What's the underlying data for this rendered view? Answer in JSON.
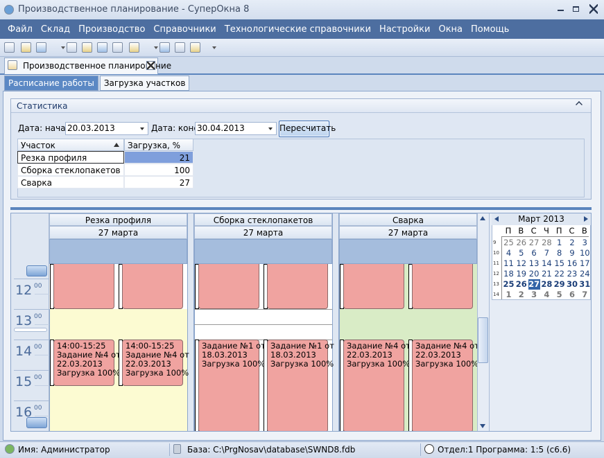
{
  "window": {
    "title": "Производственное планирование - СуперОкна 8"
  },
  "menu": [
    "Файл",
    "Склад",
    "Производство",
    "Справочники",
    "Технологические справочники",
    "Настройки",
    "Окна",
    "Помощь"
  ],
  "document_tab": "Производственное планирование",
  "tabs": [
    "Расписание работы",
    "Загрузка участков"
  ],
  "statistics": {
    "title": "Статистика",
    "start_label": "Дата: начало",
    "start": "20.03.2013",
    "end_label": "Дата: конец",
    "end": "30.04.2013",
    "button": "Пересчитать",
    "table": {
      "columns": [
        "Участок",
        "Загрузка, %"
      ],
      "rows": [
        [
          "Резка профиля",
          21
        ],
        [
          "Сборка стеклопакетов",
          100
        ],
        [
          "Сварка",
          27
        ]
      ]
    }
  },
  "scheduler": {
    "hours": [
      {
        "hour": "12",
        "minutes": "00"
      },
      {
        "hour": "13",
        "minutes": "00"
      },
      {
        "hour": "14",
        "minutes": "00"
      },
      {
        "hour": "15",
        "minutes": "00"
      },
      {
        "hour": "16",
        "minutes": "00"
      }
    ],
    "resources": [
      {
        "name": "Резка профиля",
        "date": "27 марта",
        "appointments": [
          [
            "14:00-15:25",
            "Задание №4 от",
            "22.03.2013",
            "Загрузка 100%"
          ],
          [
            "14:00-15:25",
            "Задание №4 от",
            "22.03.2013",
            "Загрузка 100%"
          ]
        ]
      },
      {
        "name": "Сборка стеклопакетов",
        "date": "27 марта",
        "appointments": [
          [
            "Задание №1 от",
            "18.03.2013",
            "Загрузка 100%"
          ],
          [
            "Задание №1 от",
            "18.03.2013",
            "Загрузка 100%"
          ]
        ]
      },
      {
        "name": "Сварка",
        "date": "27 марта",
        "appointments": [
          [
            "Задание №4 от",
            "22.03.2013",
            "Загрузка 100%"
          ],
          [
            "Задание №4 от",
            "22.03.2013",
            "Загрузка 100%"
          ]
        ]
      }
    ]
  },
  "calendar": {
    "month": "Март 2013",
    "weekdays": [
      "П",
      "В",
      "С",
      "Ч",
      "П",
      "С",
      "В"
    ],
    "weeks": [
      {
        "number": "9",
        "days": [
          25,
          26,
          27,
          28,
          1,
          2,
          3
        ]
      },
      {
        "number": "10",
        "days": [
          4,
          5,
          6,
          7,
          8,
          9,
          10
        ]
      },
      {
        "number": "11",
        "days": [
          11,
          12,
          13,
          14,
          15,
          16,
          17
        ]
      },
      {
        "number": "12",
        "days": [
          18,
          19,
          20,
          21,
          22,
          23,
          24
        ]
      },
      {
        "number": "13",
        "days": [
          25,
          26,
          27,
          28,
          29,
          30,
          31
        ]
      },
      {
        "number": "14",
        "days": [
          1,
          2,
          3,
          4,
          5,
          6,
          7
        ]
      }
    ]
  },
  "status": {
    "user": "Имя: Администратор",
    "database": "База: C:\\PrgNosav\\database\\SWND8.fdb",
    "info": "Отдел:1 Программа: 1:5 (с6.6)"
  }
}
